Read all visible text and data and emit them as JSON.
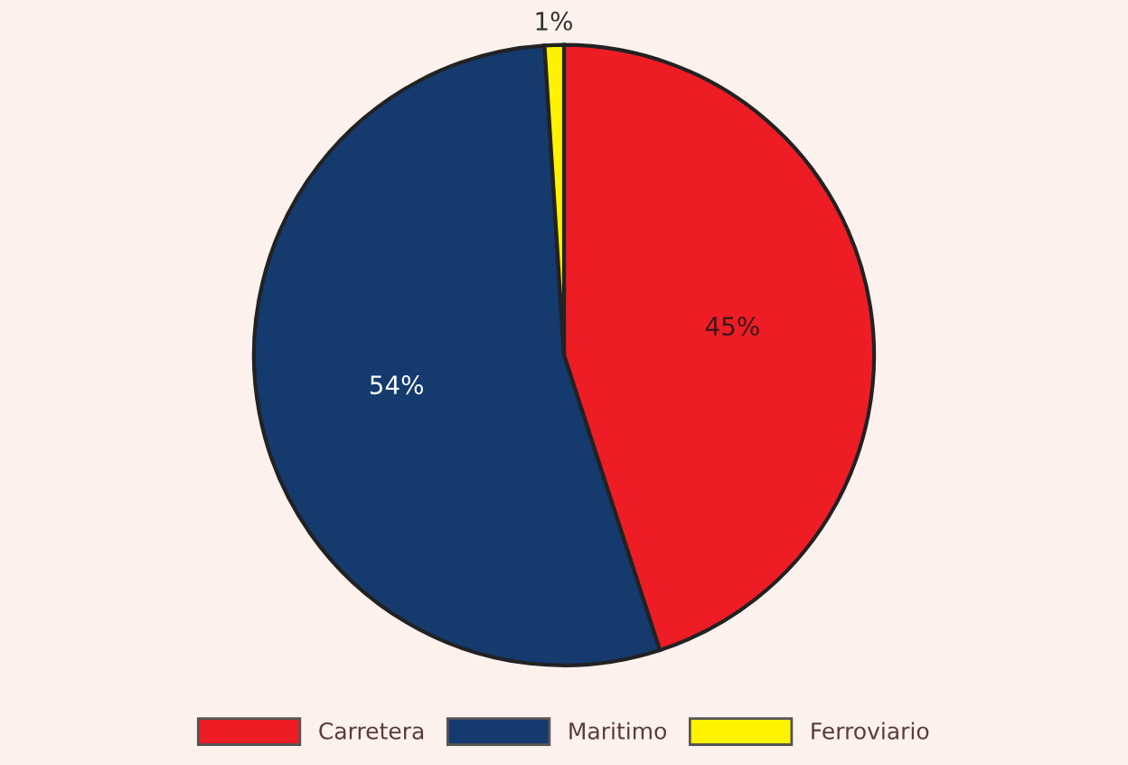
{
  "chart_data": {
    "type": "pie",
    "categories": [
      "Carretera",
      "Maritimo",
      "Ferroviario"
    ],
    "values": [
      45,
      54,
      1
    ],
    "colors": [
      "#ee1c25",
      "#143a6e",
      "#fff200"
    ],
    "value_labels": [
      "45%",
      "54%",
      "1%"
    ],
    "legend": "bottom"
  }
}
